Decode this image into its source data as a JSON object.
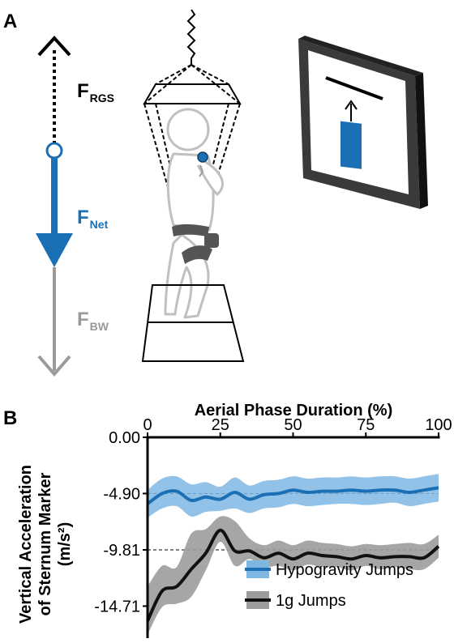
{
  "panel_a": {
    "label": "A",
    "forces": [
      {
        "main": "F",
        "sub": "RGS",
        "color": "#000000"
      },
      {
        "main": "F",
        "sub": "Net",
        "color": "#1a6fb5"
      },
      {
        "main": "F",
        "sub": "BW",
        "color": "#9a9a9a"
      }
    ]
  },
  "panel_b": {
    "label": "B"
  },
  "colors": {
    "hypogravity_line": "#1a6fb5",
    "hypogravity_band": "#7fb7e3",
    "one_g_line": "#111111",
    "one_g_band": "#9c9c9c",
    "reference_line": "#000000"
  },
  "chart_data": {
    "type": "line",
    "title": "",
    "xlabel": "Aerial Phase Duration (%)",
    "ylabel_lines": [
      "Vertical Acceleration",
      "of Sternum Marker",
      "(m/s²)"
    ],
    "x_axis_position": "top",
    "xlim": [
      0,
      100
    ],
    "ylim": [
      -17.5,
      0
    ],
    "x_ticks": [
      0,
      25,
      50,
      75,
      100
    ],
    "x_tick_labels": [
      "0",
      "25",
      "50",
      "75",
      "100"
    ],
    "y_ticks": [
      0,
      -4.9,
      -9.81,
      -14.71
    ],
    "y_tick_labels": [
      "0.00",
      "-4.90",
      "-9.81",
      "-14.71"
    ],
    "reference_lines": [
      -4.9,
      -9.81
    ],
    "grid": false,
    "legend_position": "bottom-right",
    "x": [
      0,
      5,
      10,
      15,
      20,
      25,
      30,
      35,
      40,
      45,
      50,
      55,
      60,
      65,
      70,
      75,
      80,
      85,
      90,
      95,
      100
    ],
    "series": [
      {
        "name": "Hypogravity Jumps",
        "mean": [
          -5.8,
          -4.9,
          -4.7,
          -5.5,
          -5.2,
          -5.4,
          -4.8,
          -5.4,
          -5.0,
          -4.9,
          -4.6,
          -4.8,
          -4.7,
          -4.7,
          -4.6,
          -4.7,
          -4.6,
          -4.6,
          -4.8,
          -4.6,
          -4.4
        ],
        "lower": [
          -7.0,
          -6.2,
          -6.0,
          -6.9,
          -6.5,
          -6.4,
          -6.2,
          -6.6,
          -6.2,
          -6.1,
          -5.8,
          -6.0,
          -5.9,
          -5.8,
          -5.8,
          -5.9,
          -5.8,
          -5.7,
          -6.0,
          -5.8,
          -5.6
        ],
        "upper": [
          -4.6,
          -3.6,
          -3.4,
          -4.1,
          -3.9,
          -4.3,
          -3.5,
          -4.2,
          -3.8,
          -3.7,
          -3.4,
          -3.6,
          -3.5,
          -3.5,
          -3.4,
          -3.5,
          -3.4,
          -3.4,
          -3.6,
          -3.4,
          -3.2
        ]
      },
      {
        "name": "1g Jumps",
        "mean": [
          -16.0,
          -13.4,
          -13.0,
          -11.5,
          -10.1,
          -8.1,
          -9.9,
          -9.9,
          -10.5,
          -10.1,
          -10.6,
          -10.1,
          -10.3,
          -10.4,
          -10.6,
          -10.3,
          -10.5,
          -10.4,
          -10.4,
          -10.5,
          -9.5
        ],
        "lower": [
          -17.2,
          -14.8,
          -14.5,
          -13.9,
          -11.6,
          -9.1,
          -11.2,
          -10.6,
          -11.3,
          -11.2,
          -11.6,
          -11.1,
          -11.3,
          -11.3,
          -11.6,
          -11.2,
          -11.5,
          -11.3,
          -11.5,
          -11.5,
          -10.5
        ],
        "upper": [
          -13.0,
          -11.2,
          -11.3,
          -8.4,
          -8.0,
          -6.9,
          -7.3,
          -8.8,
          -9.4,
          -9.0,
          -9.4,
          -9.0,
          -9.2,
          -9.3,
          -9.5,
          -9.3,
          -9.4,
          -9.3,
          -9.2,
          -9.3,
          -8.5
        ]
      }
    ]
  }
}
